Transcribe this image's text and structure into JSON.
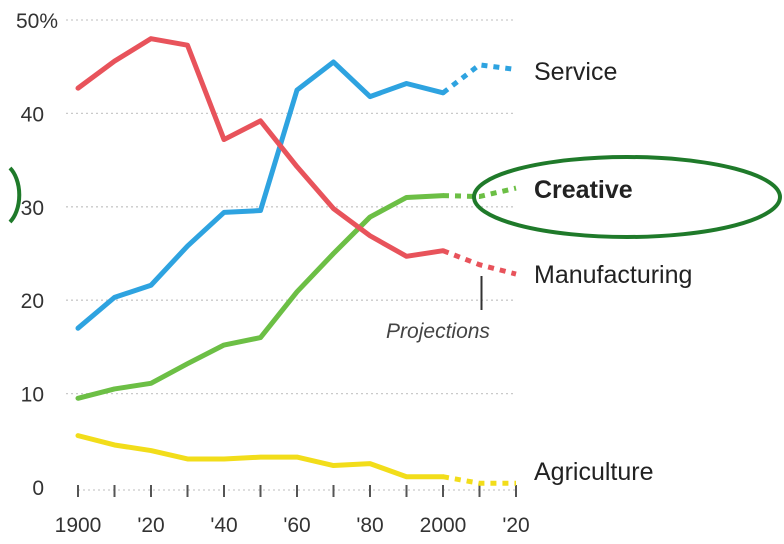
{
  "chart_data": {
    "type": "line",
    "title": "",
    "xlabel": "",
    "ylabel": "",
    "xlim": [
      1900,
      2020
    ],
    "ylim": [
      0,
      50
    ],
    "grid": true,
    "x_tick_labels": [
      "1900",
      "'20",
      "'40",
      "'60",
      "'80",
      "2000",
      "'20"
    ],
    "y_tick_labels": [
      "0",
      "10",
      "20",
      "30",
      "40",
      "50%"
    ],
    "annotations": [
      {
        "text": "Projections",
        "x": 2010
      }
    ],
    "projection_start": 2000,
    "series": [
      {
        "name": "Service",
        "color": "#2ea3e0",
        "label_bold": false,
        "x": [
          1900,
          1910,
          1920,
          1930,
          1940,
          1950,
          1960,
          1970,
          1980,
          1990,
          2000
        ],
        "values": [
          17,
          20.3,
          21.6,
          25.8,
          29.4,
          29.6,
          42.5,
          45.5,
          41.8,
          43.2,
          42.2
        ],
        "projection_x": [
          2000,
          2010,
          2020
        ],
        "projection_values": [
          42.2,
          45.2,
          44.7
        ]
      },
      {
        "name": "Creative",
        "color": "#6cbf45",
        "label_bold": true,
        "x": [
          1900,
          1910,
          1920,
          1930,
          1940,
          1950,
          1960,
          1970,
          1980,
          1990,
          2000
        ],
        "values": [
          9.5,
          10.5,
          11.1,
          13.2,
          15.2,
          16,
          20.9,
          25,
          28.9,
          31,
          31.2
        ],
        "projection_x": [
          2000,
          2010,
          2020
        ],
        "projection_values": [
          31.2,
          31.1,
          32
        ]
      },
      {
        "name": "Manufacturing",
        "color": "#e8535b",
        "label_bold": false,
        "x": [
          1900,
          1910,
          1920,
          1930,
          1940,
          1950,
          1960,
          1970,
          1980,
          1990,
          2000
        ],
        "values": [
          42.7,
          45.6,
          48,
          47.3,
          37.2,
          39.2,
          34.3,
          29.8,
          26.9,
          24.7,
          25.3
        ],
        "projection_x": [
          2000,
          2010,
          2020
        ],
        "projection_values": [
          25.3,
          23.8,
          22.8
        ]
      },
      {
        "name": "Agriculture",
        "color": "#f2dd1a",
        "label_bold": false,
        "x": [
          1900,
          1910,
          1920,
          1930,
          1940,
          1950,
          1960,
          1970,
          1980,
          1990,
          2000
        ],
        "values": [
          5.5,
          4.5,
          3.9,
          3,
          3,
          3.2,
          3.2,
          2.3,
          2.5,
          1.1,
          1.1
        ],
        "projection_x": [
          2000,
          2010,
          2020
        ],
        "projection_values": [
          1.1,
          0.4,
          0.4
        ]
      }
    ]
  },
  "colors": {
    "grid": "#c9c9c9",
    "axis": "#555555",
    "highlight_ellipse": "#1f7a2a"
  }
}
